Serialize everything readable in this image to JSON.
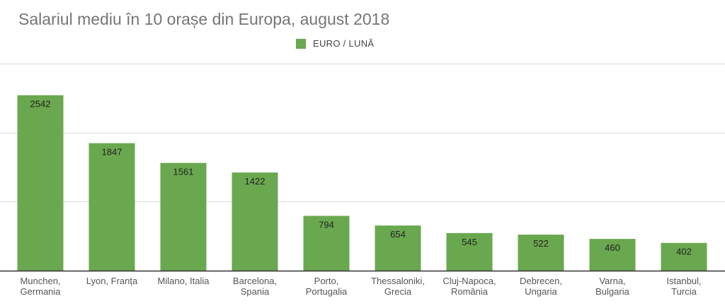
{
  "chart_data": {
    "type": "bar",
    "title": "Salariul mediu în 10 orașe din Europa, august 2018",
    "xlabel": "",
    "ylabel": "",
    "ylim": [
      0,
      3000
    ],
    "grid": true,
    "legend_position": "top-center",
    "bar_color": "#6aa84f",
    "categories": [
      [
        "Munchen,",
        "Germania"
      ],
      [
        "Lyon, Franța"
      ],
      [
        "Milano, Italia"
      ],
      [
        "Barcelona,",
        "Spania"
      ],
      [
        "Porto,",
        "Portugalia"
      ],
      [
        "Thessaloniki,",
        "Grecia"
      ],
      [
        "Cluj-Napoca,",
        "România"
      ],
      [
        "Debrecen,",
        "Ungaria"
      ],
      [
        "Varna,",
        "Bulgaria"
      ],
      [
        "Istanbul,",
        "Turcia"
      ]
    ],
    "series": [
      {
        "name": "EURO / LUNĂ",
        "values": [
          2542,
          1847,
          1561,
          1422,
          794,
          654,
          545,
          522,
          460,
          402
        ]
      }
    ]
  }
}
